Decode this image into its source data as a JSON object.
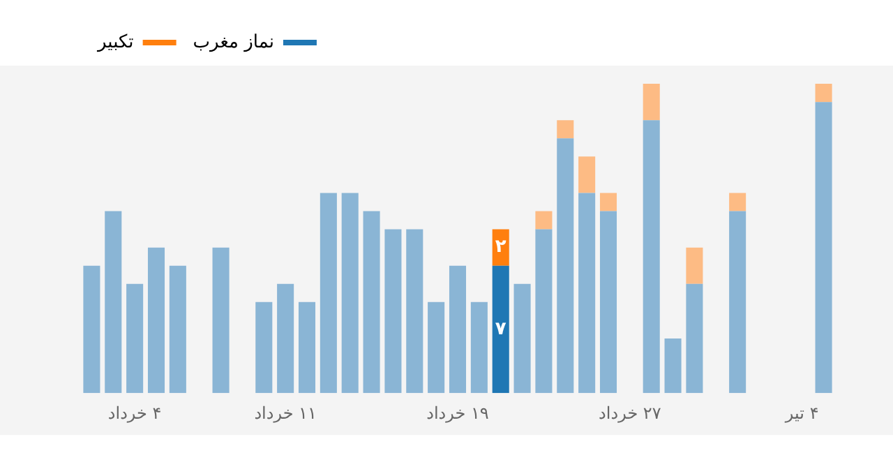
{
  "chart_data": {
    "type": "bar",
    "stacked": true,
    "categories": [
      null,
      null,
      "۴ خرداد",
      null,
      null,
      null,
      null,
      null,
      null,
      "۱۱ خرداد",
      null,
      null,
      null,
      null,
      null,
      null,
      null,
      "۱۹ خرداد",
      null,
      null,
      null,
      null,
      null,
      null,
      null,
      "۲۷ خرداد",
      null,
      null,
      null,
      null,
      null,
      null,
      null,
      "۴ تیر",
      null
    ],
    "series": [
      {
        "name": "نماز مغرب",
        "color": "#1f77b4",
        "colors": [
          "#8ab5d5",
          "#8ab5d5",
          "#8ab5d5",
          "#8ab5d5",
          "#8ab5d5",
          "#8ab5d5",
          "#8ab5d5",
          "#8ab5d5",
          "#8ab5d5",
          "#8ab5d5",
          "#8ab5d5",
          "#8ab5d5",
          "#8ab5d5",
          "#8ab5d5",
          "#8ab5d5",
          "#8ab5d5",
          "#8ab5d5",
          "#8ab5d5",
          "#8ab5d5",
          "#1f77b4",
          "#8ab5d5",
          "#8ab5d5",
          "#8ab5d5",
          "#8ab5d5",
          "#8ab5d5",
          "#8ab5d5",
          "#8ab5d5",
          "#8ab5d5",
          "#8ab5d5",
          "#8ab5d5",
          "#8ab5d5",
          "#8ab5d5",
          "#8ab5d5",
          "#8ab5d5",
          "#8ab5d5"
        ],
        "values": [
          7,
          10,
          6,
          8,
          7,
          null,
          8,
          null,
          5,
          6,
          5,
          11,
          11,
          10,
          9,
          9,
          5,
          7,
          5,
          7,
          6,
          9,
          14,
          11,
          10,
          null,
          15,
          3,
          6,
          null,
          10,
          null,
          null,
          null,
          16
        ],
        "value_labels": [
          null,
          null,
          null,
          null,
          null,
          null,
          null,
          null,
          null,
          null,
          null,
          null,
          null,
          null,
          null,
          null,
          null,
          null,
          null,
          "۷",
          null,
          null,
          null,
          null,
          null,
          null,
          null,
          null,
          null,
          null,
          null,
          null,
          null,
          null,
          null
        ]
      },
      {
        "name": "تکبیر",
        "color": "#ff7f0e",
        "colors": [
          "#fdbb84",
          "#fdbb84",
          "#fdbb84",
          "#fdbb84",
          "#fdbb84",
          "#fdbb84",
          "#fdbb84",
          "#fdbb84",
          "#fdbb84",
          "#fdbb84",
          "#fdbb84",
          "#fdbb84",
          "#fdbb84",
          "#fdbb84",
          "#fdbb84",
          "#fdbb84",
          "#fdbb84",
          "#fdbb84",
          "#fdbb84",
          "#ff7f0e",
          "#fdbb84",
          "#fdbb84",
          "#fdbb84",
          "#fdbb84",
          "#fdbb84",
          "#fdbb84",
          "#fdbb84",
          "#fdbb84",
          "#fdbb84",
          "#fdbb84",
          "#fdbb84",
          "#fdbb84",
          "#fdbb84",
          "#fdbb84",
          "#fdbb84"
        ],
        "values": [
          null,
          null,
          null,
          null,
          null,
          null,
          null,
          null,
          null,
          null,
          null,
          null,
          null,
          null,
          null,
          null,
          null,
          null,
          null,
          2,
          null,
          1,
          1,
          2,
          1,
          null,
          2,
          null,
          2,
          null,
          1,
          null,
          null,
          null,
          1
        ],
        "value_labels": [
          null,
          null,
          null,
          null,
          null,
          null,
          null,
          null,
          null,
          null,
          null,
          null,
          null,
          null,
          null,
          null,
          null,
          null,
          null,
          "۲",
          null,
          null,
          null,
          null,
          null,
          null,
          null,
          null,
          null,
          null,
          null,
          null,
          null,
          null,
          null
        ]
      }
    ],
    "ylim": [
      0,
      18
    ],
    "tick_labels": "x",
    "grid": false,
    "legend": "top left"
  }
}
